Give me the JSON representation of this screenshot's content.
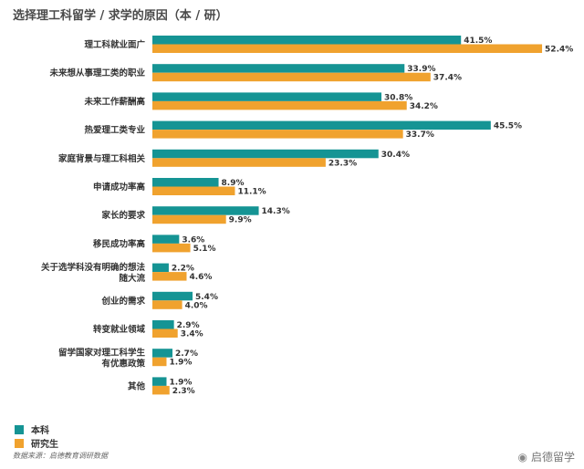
{
  "title": "选择理工科留学 / 求学的原因（本 / 研）",
  "legend": {
    "undergrad": "本科",
    "grad": "研究生"
  },
  "source": "数据来源：启德教育调研数据",
  "brand": "启德留学",
  "colors": {
    "undergrad": "#159494",
    "grad": "#F0A22E"
  },
  "chart_data": {
    "type": "bar",
    "orientation": "horizontal",
    "categories": [
      "理工科就业面广",
      "未来想从事理工类的职业",
      "未来工作薪酬高",
      "热爱理工类专业",
      "家庭背景与理工科相关",
      "申请成功率高",
      "家长的要求",
      "移民成功率高",
      "关于选学科没有明确的想法|随大流",
      "创业的需求",
      "转变就业领域",
      "留学国家对理工科学生|有优惠政策",
      "其他"
    ],
    "series": [
      {
        "name": "本科",
        "values": [
          41.5,
          33.9,
          30.8,
          45.5,
          30.4,
          8.9,
          14.3,
          3.6,
          2.2,
          5.4,
          2.9,
          2.7,
          1.9
        ]
      },
      {
        "name": "研究生",
        "values": [
          52.4,
          37.4,
          34.2,
          33.7,
          23.3,
          11.1,
          9.9,
          5.1,
          4.6,
          4.0,
          3.4,
          1.9,
          2.3
        ]
      }
    ],
    "value_suffix": "%",
    "xlim": [
      0,
      60
    ],
    "grid": false,
    "legend_position": "bottom-left"
  }
}
